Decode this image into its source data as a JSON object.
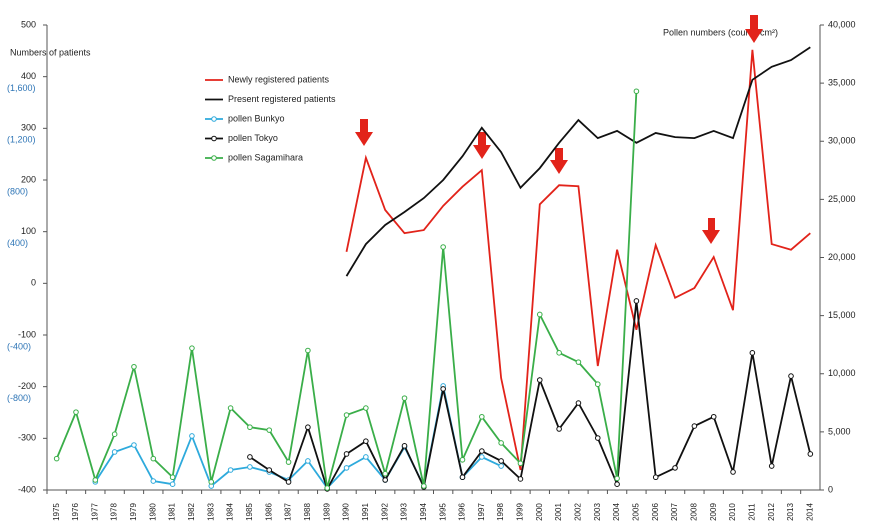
{
  "chart_data": {
    "type": "line",
    "y_label": "Numbers of patients",
    "y2_label": "Pollen numbers (counts/cm²)",
    "categories": [
      "1975",
      "1976",
      "1977",
      "1978",
      "1979",
      "1980",
      "1981",
      "1982",
      "1983",
      "1984",
      "1985",
      "1986",
      "1987",
      "1988",
      "1989",
      "1990",
      "1991",
      "1992",
      "1993",
      "1994",
      "1995",
      "1996",
      "1997",
      "1998",
      "1999",
      "2000",
      "2001",
      "2002",
      "2003",
      "2004",
      "2005",
      "2006",
      "2007",
      "2008",
      "2009",
      "2010",
      "2011",
      "2012",
      "2013",
      "2014"
    ],
    "ylim": [
      -400,
      500
    ],
    "yticks": [
      500,
      400,
      300,
      200,
      100,
      0,
      -100,
      -200,
      -300,
      -400
    ],
    "secondary_ylabels": [
      {
        "value": 400,
        "label": "(1,600)"
      },
      {
        "value": 300,
        "label": "(1,200)"
      },
      {
        "value": 200,
        "label": "(800)"
      },
      {
        "value": 100,
        "label": "(400)"
      },
      {
        "value": -100,
        "label": "(-400)"
      },
      {
        "value": -200,
        "label": "(-800)"
      }
    ],
    "secondary_ylabel_color": "#2e75b6",
    "y2lim": [
      0,
      40000
    ],
    "y2ticks": [
      {
        "value": 40000,
        "label": "40,000"
      },
      {
        "value": 35000,
        "label": "35,000"
      },
      {
        "value": 30000,
        "label": "30,000"
      },
      {
        "value": 25000,
        "label": "25,000"
      },
      {
        "value": 20000,
        "label": "20,000"
      },
      {
        "value": 15000,
        "label": "15,000"
      },
      {
        "value": 10000,
        "label": "10,000"
      },
      {
        "value": 5000,
        "label": "5,000"
      },
      0
    ],
    "grid": false,
    "legend": "upper left",
    "series": [
      {
        "name": "Newly registered patients",
        "color": "#e2231a",
        "marker": false,
        "values": [
          null,
          null,
          null,
          null,
          null,
          null,
          null,
          null,
          null,
          null,
          null,
          null,
          null,
          null,
          null,
          61,
          243,
          142,
          97,
          103,
          150,
          187,
          219,
          -183,
          -361,
          153,
          190,
          188,
          -160,
          65,
          -90,
          74,
          -28,
          -9,
          51,
          -52,
          452,
          76,
          65,
          97
        ]
      },
      {
        "name": "Present registered patients",
        "color": "#111111",
        "marker": false,
        "values": [
          null,
          null,
          null,
          null,
          null,
          null,
          null,
          null,
          null,
          null,
          null,
          null,
          null,
          null,
          null,
          14,
          76,
          113,
          138,
          165,
          200,
          246,
          301,
          254,
          185,
          223,
          272,
          316,
          281,
          295,
          272,
          291,
          283,
          281,
          295,
          281,
          394,
          419,
          432,
          457
        ]
      },
      {
        "name": "pollen Bunkyo",
        "color": "#2eaadc",
        "marker": true,
        "axis": "y2",
        "values": [
          null,
          null,
          700,
          3270,
          3870,
          770,
          500,
          4650,
          340,
          1720,
          1980,
          1550,
          860,
          2500,
          170,
          1900,
          2840,
          860,
          3700,
          340,
          8950,
          1100,
          2840,
          2060,
          null,
          null,
          null,
          null,
          null,
          null,
          null,
          null,
          null,
          null,
          null,
          null,
          null,
          null,
          null,
          null
        ]
      },
      {
        "name": "pollen Tokyo",
        "color": "#111111",
        "marker": true,
        "axis": "y2",
        "values": [
          null,
          null,
          null,
          null,
          null,
          null,
          null,
          null,
          null,
          null,
          2840,
          1720,
          690,
          5400,
          90,
          3100,
          4200,
          860,
          3800,
          260,
          8700,
          1100,
          3350,
          2500,
          950,
          9460,
          5250,
          7480,
          4470,
          500,
          16260,
          1100,
          1900,
          5500,
          6300,
          1550,
          11800,
          2060,
          9800,
          3100
        ]
      },
      {
        "name": "pollen Sagamihara",
        "color": "#3aae49",
        "marker": true,
        "axis": "y2",
        "values": [
          2700,
          6700,
          860,
          4800,
          10600,
          2700,
          1100,
          12200,
          700,
          7050,
          5400,
          5150,
          2400,
          12000,
          170,
          6450,
          7050,
          1400,
          7900,
          340,
          20900,
          2600,
          6300,
          4050,
          2300,
          15100,
          11800,
          11000,
          9100,
          1000,
          34300,
          null,
          null,
          null,
          null,
          null,
          null,
          null,
          null,
          null
        ]
      }
    ]
  }
}
